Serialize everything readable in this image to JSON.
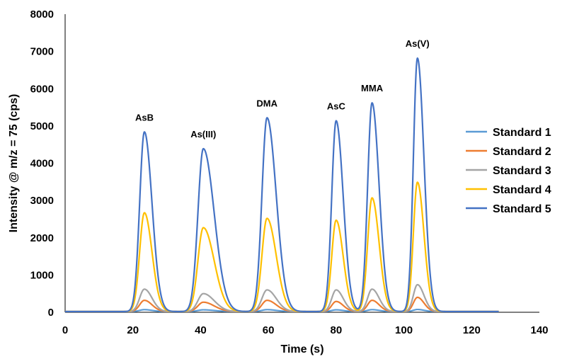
{
  "chart_data": {
    "type": "line",
    "title": "",
    "xlabel": "Time (s)",
    "ylabel": "Intensity @ m/z = 75 (cps)",
    "xlim": [
      0,
      140
    ],
    "ylim": [
      0,
      8000
    ],
    "xticks": [
      0,
      20,
      40,
      60,
      80,
      100,
      120,
      140
    ],
    "yticks": [
      0,
      1000,
      2000,
      3000,
      4000,
      5000,
      6000,
      7000,
      8000
    ],
    "grid": false,
    "legend_position": "right",
    "x_range": [
      0,
      128
    ],
    "baseline": 20,
    "peaks": [
      {
        "label": "AsB",
        "time": 23.4,
        "width": 1.4,
        "tail": 1.6
      },
      {
        "label": "As(III)",
        "time": 40.8,
        "width": 1.6,
        "tail": 2.0
      },
      {
        "label": "DMA",
        "time": 59.6,
        "width": 1.5,
        "tail": 1.8
      },
      {
        "label": "AsC",
        "time": 80.0,
        "width": 1.3,
        "tail": 1.6
      },
      {
        "label": "MMA",
        "time": 90.6,
        "width": 1.3,
        "tail": 1.6
      },
      {
        "label": "As(V)",
        "time": 104.0,
        "width": 1.2,
        "tail": 1.6
      }
    ],
    "series": [
      {
        "name": "Standard 1",
        "color": "#5B9BD5",
        "heights": [
          50,
          45,
          50,
          45,
          50,
          55
        ]
      },
      {
        "name": "Standard 2",
        "color": "#ED7D31",
        "heights": [
          300,
          250,
          300,
          270,
          300,
          380
        ]
      },
      {
        "name": "Standard 3",
        "color": "#A5A5A5",
        "heights": [
          600,
          480,
          580,
          580,
          600,
          720
        ]
      },
      {
        "name": "Standard 4",
        "color": "#FFC000",
        "heights": [
          2650,
          2250,
          2500,
          2450,
          3050,
          3470
        ]
      },
      {
        "name": "Standard 5",
        "color": "#4472C4",
        "heights": [
          4820,
          4370,
          5200,
          5120,
          5600,
          6800
        ]
      }
    ]
  }
}
